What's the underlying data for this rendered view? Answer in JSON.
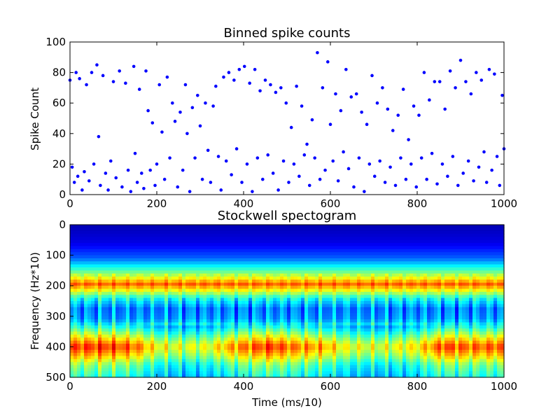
{
  "chart_data": [
    {
      "type": "scatter",
      "title": "Binned spike counts",
      "xlabel": "",
      "ylabel": "Spike Count",
      "xlim": [
        0,
        1000
      ],
      "ylim": [
        0,
        100
      ],
      "xticks": [
        "0",
        "200",
        "400",
        "600",
        "800",
        "1000"
      ],
      "yticks": [
        "0",
        "20",
        "40",
        "60",
        "80",
        "100"
      ],
      "marker_color": "#0000ff",
      "grid": false,
      "points": [
        [
          0,
          75
        ],
        [
          5,
          18
        ],
        [
          10,
          8
        ],
        [
          14,
          80
        ],
        [
          18,
          12
        ],
        [
          22,
          76
        ],
        [
          28,
          3
        ],
        [
          33,
          15
        ],
        [
          38,
          72
        ],
        [
          44,
          9
        ],
        [
          50,
          80
        ],
        [
          55,
          20
        ],
        [
          62,
          85
        ],
        [
          66,
          38
        ],
        [
          70,
          6
        ],
        [
          76,
          78
        ],
        [
          82,
          14
        ],
        [
          88,
          3
        ],
        [
          94,
          22
        ],
        [
          100,
          74
        ],
        [
          106,
          11
        ],
        [
          114,
          81
        ],
        [
          120,
          5
        ],
        [
          128,
          73
        ],
        [
          134,
          16
        ],
        [
          140,
          2
        ],
        [
          147,
          84
        ],
        [
          150,
          27
        ],
        [
          155,
          8
        ],
        [
          160,
          69
        ],
        [
          165,
          14
        ],
        [
          170,
          4
        ],
        [
          175,
          81
        ],
        [
          180,
          55
        ],
        [
          185,
          16
        ],
        [
          190,
          47
        ],
        [
          196,
          6
        ],
        [
          200,
          20
        ],
        [
          206,
          72
        ],
        [
          212,
          41
        ],
        [
          218,
          10
        ],
        [
          224,
          77
        ],
        [
          230,
          24
        ],
        [
          236,
          60
        ],
        [
          242,
          48
        ],
        [
          248,
          5
        ],
        [
          254,
          54
        ],
        [
          260,
          16
        ],
        [
          266,
          72
        ],
        [
          270,
          40
        ],
        [
          276,
          2
        ],
        [
          282,
          57
        ],
        [
          288,
          24
        ],
        [
          294,
          65
        ],
        [
          300,
          45
        ],
        [
          305,
          10
        ],
        [
          312,
          60
        ],
        [
          318,
          29
        ],
        [
          324,
          8
        ],
        [
          330,
          58
        ],
        [
          336,
          71
        ],
        [
          342,
          25
        ],
        [
          348,
          3
        ],
        [
          354,
          77
        ],
        [
          360,
          22
        ],
        [
          366,
          80
        ],
        [
          372,
          13
        ],
        [
          378,
          75
        ],
        [
          384,
          30
        ],
        [
          390,
          82
        ],
        [
          396,
          8
        ],
        [
          402,
          84
        ],
        [
          408,
          20
        ],
        [
          414,
          73
        ],
        [
          420,
          2
        ],
        [
          426,
          82
        ],
        [
          432,
          24
        ],
        [
          438,
          68
        ],
        [
          444,
          10
        ],
        [
          450,
          75
        ],
        [
          456,
          26
        ],
        [
          462,
          72
        ],
        [
          468,
          14
        ],
        [
          474,
          67
        ],
        [
          480,
          3
        ],
        [
          486,
          70
        ],
        [
          492,
          22
        ],
        [
          498,
          60
        ],
        [
          504,
          8
        ],
        [
          510,
          44
        ],
        [
          516,
          20
        ],
        [
          522,
          71
        ],
        [
          528,
          12
        ],
        [
          534,
          58
        ],
        [
          540,
          26
        ],
        [
          546,
          33
        ],
        [
          552,
          6
        ],
        [
          558,
          49
        ],
        [
          564,
          24
        ],
        [
          570,
          93
        ],
        [
          576,
          10
        ],
        [
          582,
          70
        ],
        [
          588,
          16
        ],
        [
          594,
          87
        ],
        [
          600,
          46
        ],
        [
          606,
          22
        ],
        [
          612,
          66
        ],
        [
          618,
          9
        ],
        [
          624,
          55
        ],
        [
          630,
          28
        ],
        [
          636,
          82
        ],
        [
          642,
          17
        ],
        [
          648,
          64
        ],
        [
          654,
          5
        ],
        [
          660,
          66
        ],
        [
          666,
          24
        ],
        [
          672,
          54
        ],
        [
          678,
          2
        ],
        [
          684,
          46
        ],
        [
          690,
          20
        ],
        [
          696,
          78
        ],
        [
          702,
          12
        ],
        [
          708,
          60
        ],
        [
          714,
          22
        ],
        [
          720,
          70
        ],
        [
          726,
          8
        ],
        [
          732,
          56
        ],
        [
          738,
          18
        ],
        [
          744,
          42
        ],
        [
          750,
          6
        ],
        [
          756,
          52
        ],
        [
          762,
          24
        ],
        [
          768,
          69
        ],
        [
          774,
          10
        ],
        [
          780,
          36
        ],
        [
          786,
          20
        ],
        [
          792,
          58
        ],
        [
          798,
          5
        ],
        [
          804,
          52
        ],
        [
          810,
          24
        ],
        [
          816,
          80
        ],
        [
          822,
          10
        ],
        [
          828,
          62
        ],
        [
          834,
          27
        ],
        [
          840,
          74
        ],
        [
          846,
          7
        ],
        [
          852,
          74
        ],
        [
          858,
          20
        ],
        [
          864,
          56
        ],
        [
          870,
          12
        ],
        [
          876,
          81
        ],
        [
          882,
          25
        ],
        [
          888,
          70
        ],
        [
          894,
          6
        ],
        [
          900,
          88
        ],
        [
          906,
          14
        ],
        [
          912,
          74
        ],
        [
          918,
          22
        ],
        [
          924,
          66
        ],
        [
          930,
          9
        ],
        [
          936,
          80
        ],
        [
          942,
          18
        ],
        [
          948,
          75
        ],
        [
          954,
          28
        ],
        [
          960,
          8
        ],
        [
          966,
          82
        ],
        [
          972,
          16
        ],
        [
          978,
          79
        ],
        [
          984,
          25
        ],
        [
          990,
          6
        ],
        [
          996,
          65
        ],
        [
          1000,
          30
        ]
      ]
    },
    {
      "type": "heatmap",
      "title": "Stockwell spectogram",
      "xlabel": "Time (ms/10)",
      "ylabel": "Frequency (Hz*10)",
      "xlim": [
        0,
        1000
      ],
      "ylim": [
        500,
        0
      ],
      "xticks": [
        "0",
        "200",
        "400",
        "600",
        "800",
        "1000"
      ],
      "yticks": [
        "0",
        "100",
        "200",
        "300",
        "400",
        "500"
      ],
      "colormap": "jet",
      "bands": [
        {
          "freq": 0,
          "intensity": 0.05
        },
        {
          "freq": 60,
          "intensity": 0.1
        },
        {
          "freq": 110,
          "intensity": 0.22
        },
        {
          "freq": 150,
          "intensity": 0.45
        },
        {
          "freq": 175,
          "intensity": 0.62
        },
        {
          "freq": 195,
          "intensity": 0.78
        },
        {
          "freq": 215,
          "intensity": 0.62
        },
        {
          "freq": 240,
          "intensity": 0.4
        },
        {
          "freq": 275,
          "intensity": 0.25
        },
        {
          "freq": 310,
          "intensity": 0.28
        },
        {
          "freq": 340,
          "intensity": 0.45
        },
        {
          "freq": 370,
          "intensity": 0.65
        },
        {
          "freq": 400,
          "intensity": 0.85
        },
        {
          "freq": 430,
          "intensity": 0.7
        },
        {
          "freq": 460,
          "intensity": 0.52
        },
        {
          "freq": 500,
          "intensity": 0.42
        }
      ],
      "time_modulation": [
        {
          "t": 0,
          "gain": 0.95
        },
        {
          "t": 80,
          "gain": 1.0
        },
        {
          "t": 150,
          "gain": 0.85
        },
        {
          "t": 200,
          "gain": 0.45
        },
        {
          "t": 260,
          "gain": 0.35
        },
        {
          "t": 320,
          "gain": 0.4
        },
        {
          "t": 380,
          "gain": 0.75
        },
        {
          "t": 460,
          "gain": 1.0
        },
        {
          "t": 520,
          "gain": 0.8
        },
        {
          "t": 580,
          "gain": 0.7
        },
        {
          "t": 640,
          "gain": 0.4
        },
        {
          "t": 720,
          "gain": 0.35
        },
        {
          "t": 800,
          "gain": 0.5
        },
        {
          "t": 860,
          "gain": 0.95
        },
        {
          "t": 920,
          "gain": 0.85
        },
        {
          "t": 1000,
          "gain": 0.9
        }
      ]
    }
  ]
}
